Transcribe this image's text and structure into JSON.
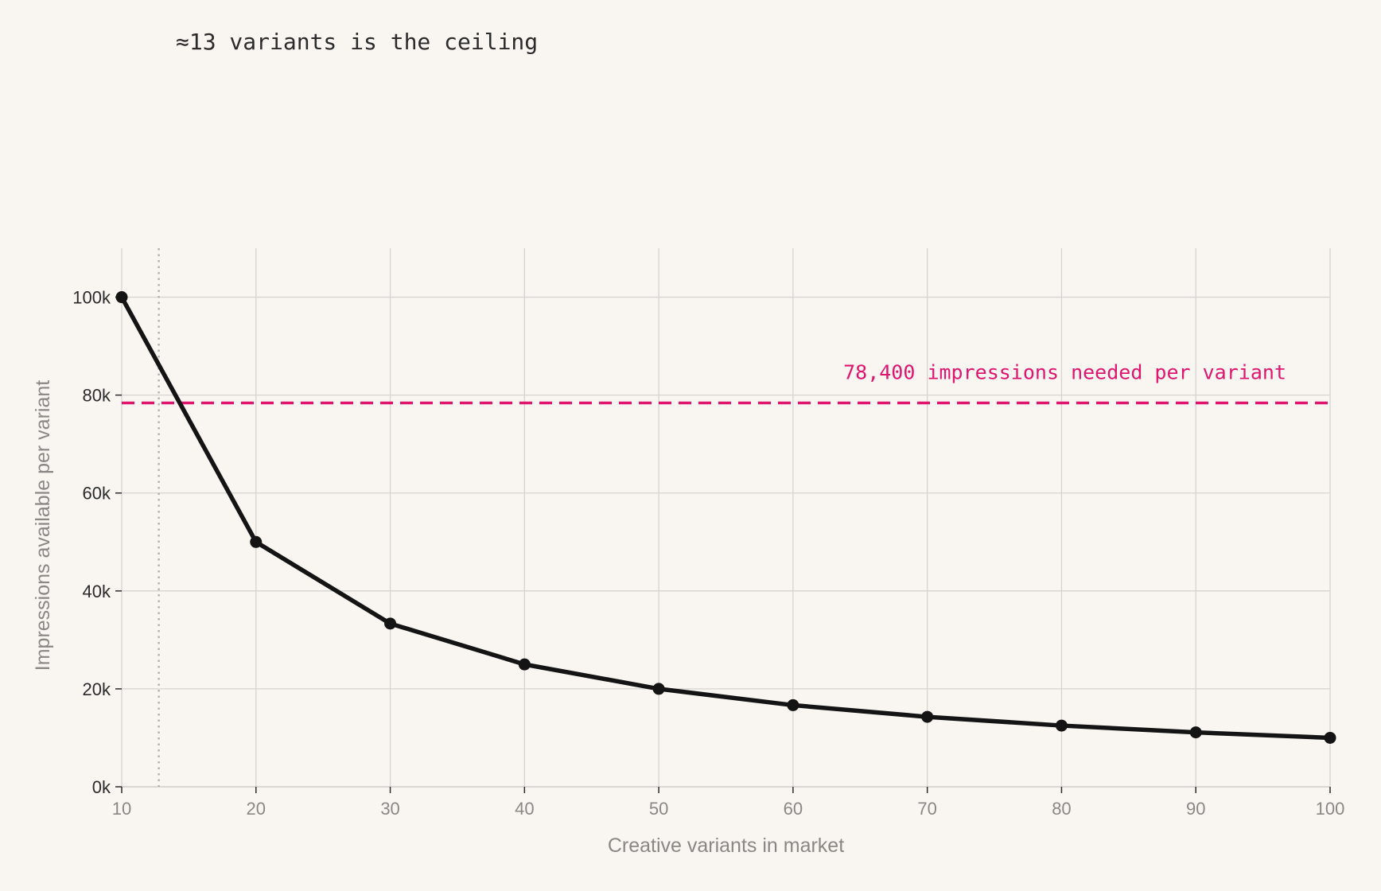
{
  "headline": "≈13 variants is the ceiling",
  "chart_data": {
    "type": "line",
    "x": [
      10,
      20,
      30,
      40,
      50,
      60,
      70,
      80,
      90,
      100
    ],
    "series": [
      {
        "values": [
          100000,
          50000,
          33333,
          25000,
          20000,
          16667,
          14286,
          12500,
          11111,
          10000
        ],
        "color": "#141414"
      }
    ],
    "xlabel": "Creative variants in market",
    "ylabel": "Impressions available per variant",
    "xlim": [
      10,
      100
    ],
    "ylim": [
      0,
      110000
    ],
    "x_ticks": [
      10,
      20,
      30,
      40,
      50,
      60,
      70,
      80,
      90,
      100
    ],
    "x_tick_labels": [
      "10",
      "20",
      "30",
      "40",
      "50",
      "60",
      "70",
      "80",
      "90",
      "100"
    ],
    "y_ticks": [
      0,
      20000,
      40000,
      60000,
      80000,
      100000
    ],
    "y_tick_labels": [
      "0k",
      "20k",
      "40k",
      "60k",
      "80k",
      "100k"
    ],
    "grid": true,
    "threshold": {
      "value": 78400,
      "label": "78,400 impressions needed per variant",
      "color": "#e0156e",
      "style": "dashed"
    },
    "ceiling_marker": {
      "x": 12.76,
      "style": "dotted",
      "color": "#b5b2af"
    }
  }
}
